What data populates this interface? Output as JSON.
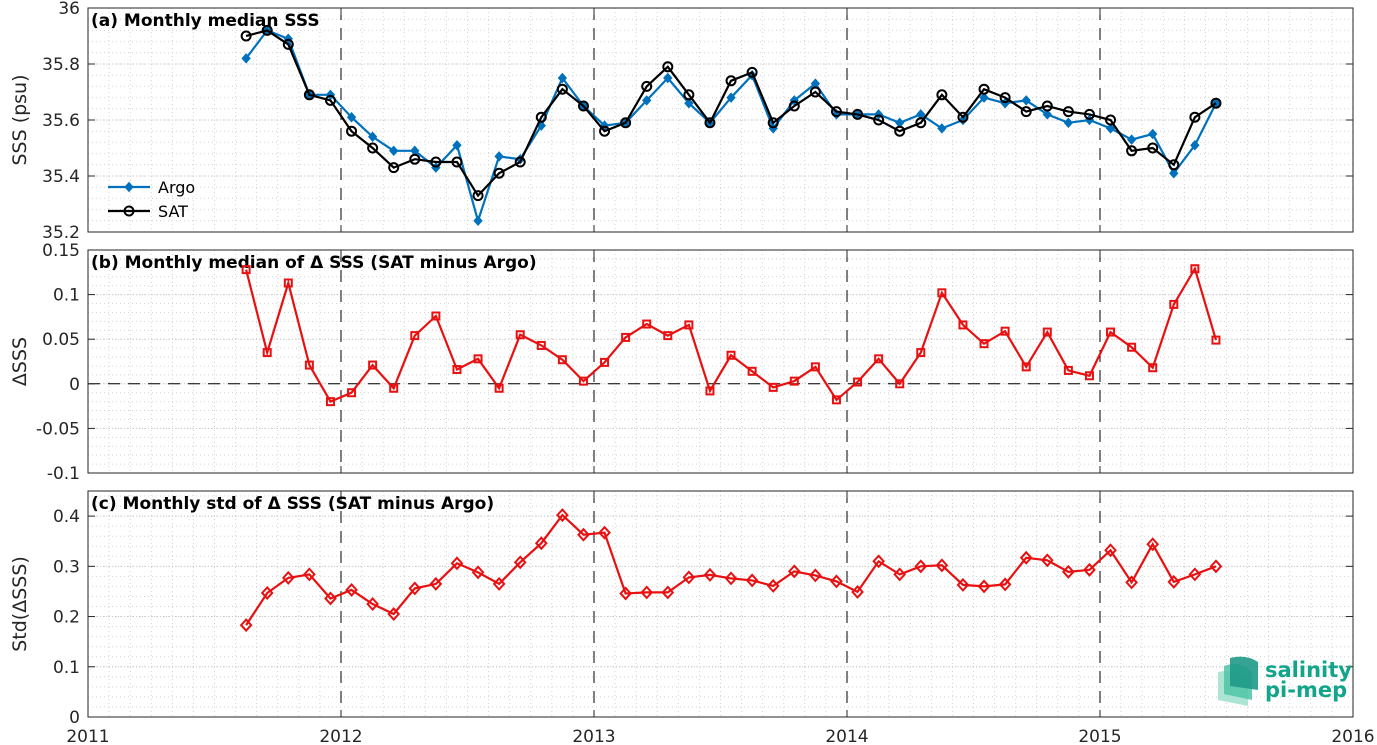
{
  "colors": {
    "argo": "#0072bd",
    "sat": "#000000",
    "diff": "#e81010",
    "frame": "#262626",
    "logo": "#12a58a"
  },
  "logo": {
    "line1": "salinity",
    "line2": "pi-mep"
  },
  "chart_data": [
    {
      "type": "line",
      "title": "(a) Monthly median SSS",
      "ylabel": "SSS (psu)",
      "xlim": [
        "2011-01-01",
        "2016-01-01"
      ],
      "ylim": [
        35.2,
        36.0
      ],
      "xticks": [
        "2011",
        "2012",
        "2013",
        "2014",
        "2015",
        "2016"
      ],
      "yticks": [
        "35.2",
        "35.4",
        "35.6",
        "35.8",
        "36"
      ],
      "grid": true,
      "legend_position": "lower-left",
      "x": [
        "2011-08",
        "2011-09",
        "2011-10",
        "2011-11",
        "2011-12",
        "2012-01",
        "2012-02",
        "2012-03",
        "2012-04",
        "2012-05",
        "2012-06",
        "2012-07",
        "2012-08",
        "2012-09",
        "2012-10",
        "2012-11",
        "2012-12",
        "2013-01",
        "2013-02",
        "2013-03",
        "2013-04",
        "2013-05",
        "2013-06",
        "2013-07",
        "2013-08",
        "2013-09",
        "2013-10",
        "2013-11",
        "2013-12",
        "2014-01",
        "2014-02",
        "2014-03",
        "2014-04",
        "2014-05",
        "2014-06",
        "2014-07",
        "2014-08",
        "2014-09",
        "2014-10",
        "2014-11",
        "2014-12",
        "2015-01",
        "2015-02",
        "2015-03",
        "2015-04",
        "2015-05",
        "2015-06"
      ],
      "series": [
        {
          "name": "Argo",
          "marker": "diamond-filled",
          "values": [
            35.82,
            35.92,
            35.89,
            35.69,
            35.69,
            35.61,
            35.54,
            35.49,
            35.49,
            35.43,
            35.51,
            35.24,
            35.47,
            35.46,
            35.58,
            35.75,
            35.65,
            35.58,
            35.59,
            35.67,
            35.75,
            35.66,
            35.59,
            35.68,
            35.76,
            35.57,
            35.67,
            35.73,
            35.62,
            35.62,
            35.62,
            35.59,
            35.62,
            35.57,
            35.6,
            35.68,
            35.66,
            35.67,
            35.62,
            35.59,
            35.6,
            35.57,
            35.53,
            35.55,
            35.41,
            35.51,
            35.66
          ]
        },
        {
          "name": "SAT",
          "marker": "circle-open",
          "values": [
            35.9,
            35.92,
            35.87,
            35.69,
            35.67,
            35.56,
            35.5,
            35.43,
            35.46,
            35.45,
            35.45,
            35.33,
            35.41,
            35.45,
            35.61,
            35.71,
            35.65,
            35.56,
            35.59,
            35.72,
            35.79,
            35.69,
            35.59,
            35.74,
            35.77,
            35.59,
            35.65,
            35.7,
            35.63,
            35.62,
            35.6,
            35.56,
            35.59,
            35.69,
            35.61,
            35.71,
            35.68,
            35.63,
            35.65,
            35.63,
            35.62,
            35.6,
            35.49,
            35.5,
            35.44,
            35.61,
            35.66
          ]
        }
      ]
    },
    {
      "type": "line",
      "title": "(b) Monthly median of Δ SSS (SAT minus Argo)",
      "ylabel": "ΔSSS",
      "xlim": [
        "2011-01-01",
        "2016-01-01"
      ],
      "ylim": [
        -0.1,
        0.15
      ],
      "yticks": [
        "-0.1",
        "-0.05",
        "0",
        "0.05",
        "0.1",
        "0.15"
      ],
      "grid": true,
      "x": [
        "2011-08",
        "2011-09",
        "2011-10",
        "2011-11",
        "2011-12",
        "2012-01",
        "2012-02",
        "2012-03",
        "2012-04",
        "2012-05",
        "2012-06",
        "2012-07",
        "2012-08",
        "2012-09",
        "2012-10",
        "2012-11",
        "2012-12",
        "2013-01",
        "2013-02",
        "2013-03",
        "2013-04",
        "2013-05",
        "2013-06",
        "2013-07",
        "2013-08",
        "2013-09",
        "2013-10",
        "2013-11",
        "2013-12",
        "2014-01",
        "2014-02",
        "2014-03",
        "2014-04",
        "2014-05",
        "2014-06",
        "2014-07",
        "2014-08",
        "2014-09",
        "2014-10",
        "2014-11",
        "2014-12",
        "2015-01",
        "2015-02",
        "2015-03",
        "2015-04",
        "2015-05",
        "2015-06"
      ],
      "series": [
        {
          "marker": "square-open",
          "values": [
            0.128,
            0.035,
            0.113,
            0.021,
            -0.02,
            -0.01,
            0.021,
            -0.005,
            0.054,
            0.076,
            0.016,
            0.028,
            -0.005,
            0.055,
            0.043,
            0.027,
            0.003,
            0.024,
            0.052,
            0.067,
            0.054,
            0.066,
            -0.008,
            0.032,
            0.014,
            -0.004,
            0.003,
            0.019,
            -0.018,
            0.002,
            0.028,
            0.0,
            0.035,
            0.102,
            0.066,
            0.045,
            0.059,
            0.019,
            0.058,
            0.015,
            0.009,
            0.058,
            0.041,
            0.018,
            0.089,
            0.129,
            0.049
          ]
        }
      ]
    },
    {
      "type": "line",
      "title": "(c) Monthly std of Δ SSS (SAT minus Argo)",
      "ylabel": "Std(ΔSSS)",
      "xlim": [
        "2011-01-01",
        "2016-01-01"
      ],
      "ylim": [
        0,
        0.45
      ],
      "yticks": [
        "0",
        "0.1",
        "0.2",
        "0.3",
        "0.4"
      ],
      "grid": true,
      "x": [
        "2011-08",
        "2011-09",
        "2011-10",
        "2011-11",
        "2011-12",
        "2012-01",
        "2012-02",
        "2012-03",
        "2012-04",
        "2012-05",
        "2012-06",
        "2012-07",
        "2012-08",
        "2012-09",
        "2012-10",
        "2012-11",
        "2012-12",
        "2013-01",
        "2013-02",
        "2013-03",
        "2013-04",
        "2013-05",
        "2013-06",
        "2013-07",
        "2013-08",
        "2013-09",
        "2013-10",
        "2013-11",
        "2013-12",
        "2014-01",
        "2014-02",
        "2014-03",
        "2014-04",
        "2014-05",
        "2014-06",
        "2014-07",
        "2014-08",
        "2014-09",
        "2014-10",
        "2014-11",
        "2014-12",
        "2015-01",
        "2015-02",
        "2015-03",
        "2015-04",
        "2015-05",
        "2015-06"
      ],
      "series": [
        {
          "marker": "diamond-open",
          "values": [
            0.183,
            0.247,
            0.277,
            0.284,
            0.236,
            0.253,
            0.225,
            0.205,
            0.256,
            0.265,
            0.306,
            0.288,
            0.265,
            0.308,
            0.346,
            0.402,
            0.363,
            0.367,
            0.246,
            0.248,
            0.248,
            0.278,
            0.283,
            0.276,
            0.272,
            0.261,
            0.29,
            0.282,
            0.27,
            0.249,
            0.31,
            0.284,
            0.3,
            0.302,
            0.263,
            0.26,
            0.264,
            0.317,
            0.312,
            0.289,
            0.293,
            0.332,
            0.268,
            0.344,
            0.269,
            0.284,
            0.3
          ]
        }
      ]
    }
  ]
}
